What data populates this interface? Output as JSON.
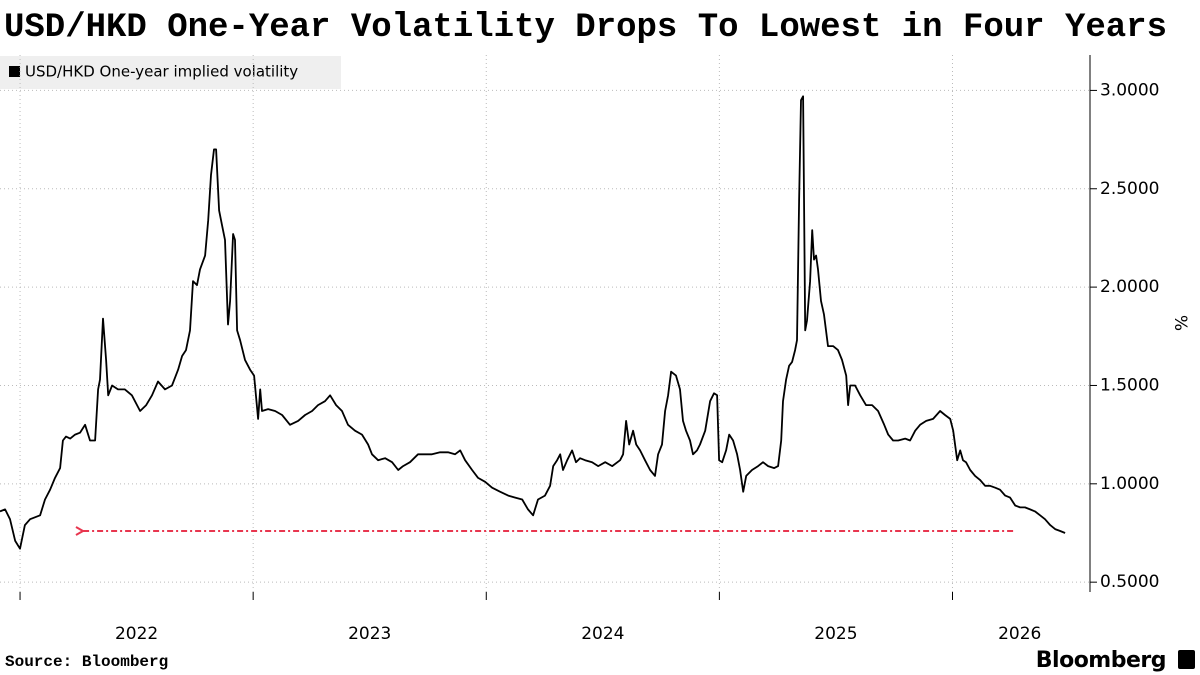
{
  "chart_data": {
    "type": "line",
    "title": "USD/HKD One-Year Volatility Drops To Lowest in Four Years",
    "y_axis_label": "%",
    "source": "Source: Bloomberg",
    "brand": "Bloomberg",
    "grid": true,
    "xlim": [
      2021.914,
      2026.577
    ],
    "xticks": [
      {
        "value": 2022,
        "label": "2022"
      },
      {
        "value": 2023,
        "label": "2023"
      },
      {
        "value": 2024,
        "label": "2024"
      },
      {
        "value": 2025,
        "label": "2025"
      },
      {
        "value": 2026,
        "label": "2026"
      }
    ],
    "ylim": [
      0.45,
      3.18
    ],
    "yticks": [
      {
        "value": 0.5,
        "label": "0.5000"
      },
      {
        "value": 1,
        "label": "1.0000"
      },
      {
        "value": 1.5,
        "label": "1.5000"
      },
      {
        "value": 2,
        "label": "2.0000"
      },
      {
        "value": 2.5,
        "label": "2.5000"
      },
      {
        "value": 3,
        "label": "3.0000"
      }
    ],
    "annotation_arrow": {
      "y": 0.76,
      "x": [
        2026.26,
        2022.27
      ],
      "color": "#e8364f"
    },
    "x": [
      2021.914,
      2021.936,
      2021.957,
      2021.979,
      2022.0,
      2022.021,
      2022.043,
      2022.086,
      2022.107,
      2022.129,
      2022.15,
      2022.172,
      2022.184,
      2022.197,
      2022.215,
      2022.236,
      2022.257,
      2022.279,
      2022.3,
      2022.322,
      2022.335,
      2022.343,
      2022.356,
      2022.369,
      2022.378,
      2022.395,
      2022.42,
      2022.45,
      2022.48,
      2022.515,
      2022.541,
      2022.566,
      2022.592,
      2022.622,
      2022.652,
      2022.678,
      2022.695,
      2022.712,
      2022.729,
      2022.742,
      2022.759,
      2022.772,
      2022.794,
      2022.807,
      2022.819,
      2022.832,
      2022.841,
      2022.854,
      2022.867,
      2022.879,
      2022.892,
      2022.901,
      2022.914,
      2022.922,
      2022.931,
      2022.944,
      2022.965,
      2022.987,
      2023.004,
      2023.021,
      2023.03,
      2023.038,
      2023.064,
      2023.094,
      2023.124,
      2023.158,
      2023.193,
      2023.223,
      2023.253,
      2023.278,
      2023.308,
      2023.33,
      2023.356,
      2023.381,
      2023.407,
      2023.437,
      2023.467,
      2023.493,
      2023.51,
      2023.536,
      2023.566,
      2023.596,
      2023.622,
      2023.643,
      2023.673,
      2023.707,
      2023.737,
      2023.767,
      2023.802,
      2023.836,
      2023.866,
      2023.888,
      2023.909,
      2023.939,
      2023.965,
      2023.995,
      2024.025,
      2024.059,
      2024.094,
      2024.124,
      2024.154,
      2024.179,
      2024.201,
      2024.222,
      2024.252,
      2024.274,
      2024.287,
      2024.304,
      2024.317,
      2024.329,
      2024.347,
      2024.368,
      2024.385,
      2024.402,
      2024.424,
      2024.454,
      2024.48,
      2024.51,
      2024.54,
      2024.574,
      2024.587,
      2024.6,
      2024.613,
      2024.63,
      2024.643,
      2024.66,
      2024.681,
      2024.703,
      2024.724,
      2024.737,
      2024.754,
      2024.767,
      2024.78,
      2024.793,
      2024.814,
      2024.831,
      2024.844,
      2024.857,
      2024.874,
      2024.887,
      2024.904,
      2024.917,
      2024.939,
      2024.96,
      2024.977,
      2024.99,
      2024.999,
      2025.012,
      2025.029,
      2025.042,
      2025.059,
      2025.076,
      2025.089,
      2025.102,
      2025.115,
      2025.14,
      2025.166,
      2025.187,
      2025.209,
      2025.235,
      2025.252,
      2025.265,
      2025.273,
      2025.286,
      2025.299,
      2025.312,
      2025.325,
      2025.333,
      2025.342,
      2025.35,
      2025.359,
      2025.368,
      2025.376,
      2025.389,
      2025.398,
      2025.406,
      2025.415,
      2025.423,
      2025.436,
      2025.449,
      2025.466,
      2025.488,
      2025.509,
      2025.526,
      2025.544,
      2025.552,
      2025.561,
      2025.582,
      2025.604,
      2025.629,
      2025.655,
      2025.681,
      2025.707,
      2025.724,
      2025.745,
      2025.767,
      2025.797,
      2025.818,
      2025.84,
      2025.861,
      2025.887,
      2025.917,
      2025.947,
      2025.968,
      2025.99,
      2026.003,
      2026.02,
      2026.033,
      2026.045,
      2026.058,
      2026.076,
      2026.097,
      2026.118,
      2026.14,
      2026.161,
      2026.183,
      2026.204,
      2026.226,
      2026.247,
      2026.269,
      2026.29,
      2026.311,
      2026.333,
      2026.354,
      2026.376,
      2026.397,
      2026.419,
      2026.44,
      2026.462,
      2026.483
    ],
    "series": [
      {
        "name": "USD/HKD One-year implied volatility",
        "color": "#000000",
        "values": [
          0.86,
          0.87,
          0.82,
          0.71,
          0.67,
          0.79,
          0.82,
          0.84,
          0.92,
          0.97,
          1.03,
          1.08,
          1.22,
          1.24,
          1.23,
          1.25,
          1.26,
          1.3,
          1.22,
          1.22,
          1.48,
          1.53,
          1.84,
          1.63,
          1.45,
          1.5,
          1.48,
          1.48,
          1.45,
          1.37,
          1.4,
          1.45,
          1.52,
          1.48,
          1.5,
          1.58,
          1.65,
          1.68,
          1.78,
          2.03,
          2.01,
          2.09,
          2.16,
          2.34,
          2.57,
          2.7,
          2.7,
          2.39,
          2.31,
          2.24,
          1.81,
          1.93,
          2.27,
          2.24,
          1.78,
          1.73,
          1.63,
          1.58,
          1.55,
          1.33,
          1.48,
          1.37,
          1.38,
          1.37,
          1.35,
          1.3,
          1.32,
          1.35,
          1.37,
          1.4,
          1.42,
          1.45,
          1.4,
          1.37,
          1.3,
          1.27,
          1.25,
          1.2,
          1.15,
          1.12,
          1.13,
          1.11,
          1.07,
          1.09,
          1.11,
          1.15,
          1.15,
          1.15,
          1.16,
          1.16,
          1.15,
          1.17,
          1.12,
          1.07,
          1.03,
          1.01,
          0.98,
          0.96,
          0.94,
          0.93,
          0.92,
          0.87,
          0.84,
          0.92,
          0.94,
          0.99,
          1.09,
          1.12,
          1.15,
          1.07,
          1.12,
          1.17,
          1.11,
          1.13,
          1.12,
          1.11,
          1.09,
          1.11,
          1.09,
          1.12,
          1.15,
          1.32,
          1.2,
          1.27,
          1.2,
          1.17,
          1.12,
          1.07,
          1.04,
          1.15,
          1.2,
          1.37,
          1.45,
          1.57,
          1.55,
          1.48,
          1.32,
          1.27,
          1.22,
          1.15,
          1.17,
          1.2,
          1.27,
          1.42,
          1.46,
          1.45,
          1.12,
          1.11,
          1.17,
          1.25,
          1.22,
          1.15,
          1.07,
          0.96,
          1.04,
          1.07,
          1.09,
          1.11,
          1.09,
          1.08,
          1.09,
          1.22,
          1.42,
          1.53,
          1.6,
          1.62,
          1.68,
          1.73,
          2.44,
          2.95,
          2.97,
          1.78,
          1.83,
          2.03,
          2.29,
          2.14,
          2.16,
          2.09,
          1.93,
          1.86,
          1.7,
          1.7,
          1.68,
          1.63,
          1.55,
          1.4,
          1.5,
          1.5,
          1.45,
          1.4,
          1.4,
          1.37,
          1.3,
          1.25,
          1.22,
          1.22,
          1.23,
          1.22,
          1.27,
          1.3,
          1.32,
          1.33,
          1.37,
          1.35,
          1.33,
          1.27,
          1.12,
          1.17,
          1.12,
          1.11,
          1.07,
          1.04,
          1.02,
          0.99,
          0.99,
          0.98,
          0.97,
          0.94,
          0.93,
          0.89,
          0.88,
          0.88,
          0.87,
          0.86,
          0.84,
          0.82,
          0.79,
          0.77,
          0.76,
          0.75
        ]
      }
    ]
  }
}
